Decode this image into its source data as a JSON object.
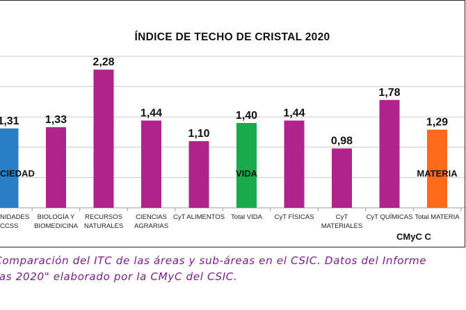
{
  "chart_data": {
    "type": "bar",
    "title": "ÍNDICE DE TECHO DE CRISTAL 2020",
    "categories": [
      [
        "NIDADES",
        "CCSS"
      ],
      [
        "BIOLOGÍA Y",
        "BIOMEDICINA"
      ],
      [
        "RECURSOS",
        "NATURALES"
      ],
      [
        "CIENCIAS",
        "AGRARIAS"
      ],
      [
        "CyT  ALIMENTOS"
      ],
      [
        "Total VIDA"
      ],
      [
        "CyT FÍSICAS"
      ],
      [
        "CyT",
        "MATERIALES"
      ],
      [
        "CyT QUÍMICAS"
      ],
      [
        "Total MATERIA"
      ]
    ],
    "values": [
      1.31,
      1.33,
      2.28,
      1.44,
      1.1,
      1.4,
      1.44,
      0.98,
      1.78,
      1.29
    ],
    "value_labels": [
      "1,31",
      "1,33",
      "2,28",
      "1,44",
      "1,10",
      "1,40",
      "1,44",
      "0,98",
      "1,78",
      "1,29"
    ],
    "colors": [
      "#2a7fc4",
      "#b0238a",
      "#b0238a",
      "#b0238a",
      "#b0238a",
      "#1aaa4b",
      "#b0238a",
      "#b0238a",
      "#b0238a",
      "#ff6a1a"
    ],
    "bar_texts": [
      "CIEDAD",
      "",
      "",
      "",
      "",
      "VIDA",
      "",
      "",
      "",
      "MATERIA"
    ],
    "ylim": [
      0,
      2.5
    ],
    "grid": true,
    "xlabel": "",
    "ylabel": ""
  },
  "footer_label": "CMyC C",
  "caption": [
    "Comparación del ITC de las áreas y sub-áreas en el CSIC. Datos del Informe",
    "ras 2020\" elaborado por la CMyC del CSIC."
  ]
}
